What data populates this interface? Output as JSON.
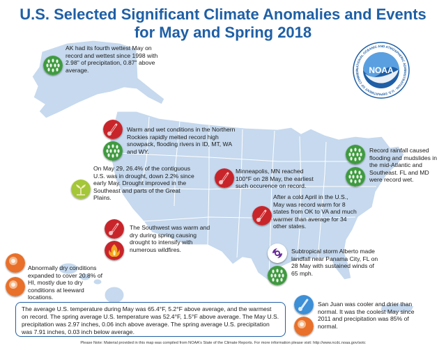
{
  "title": {
    "line1": "U.S. Selected Significant Climate Anomalies and Events",
    "line2": "for May and Spring 2018"
  },
  "logo": {
    "text": "NOAA",
    "ring_text": "NATIONAL OCEANIC AND ATMOSPHERIC ADMINISTRATION · U.S. DEPARTMENT OF COMMERCE"
  },
  "annotations": {
    "alaska": "AK had its fourth wettest May on record and wettest since 1998 with 2.98\" of precipitation, 0.87\" above average.",
    "rockies": "Warm and wet conditions in the Northern Rockies rapidly melted record high snowpack, flooding rivers in ID, MT, WA and WY.",
    "drought": "On May 29, 26.4% of the contiguous U.S. was in drought, down 2.2% since early May. Drought improved in the Southeast and parts of the Great Plains.",
    "minneapolis": "Minneapolis, MN reached 100°F on 28 May, the earliest such occurence on record.",
    "midatlantic": "Record rainfall caused flooding and mudslides in the mid-Atlantic and Southeast. FL and MD were record wet.",
    "april": "After a cold April in the U.S., May was record warm for 8 states from OK to VA and much warmer than average for 34 other states.",
    "southwest": "The Southwest was warm and dry during spring causing drought to intensify with numerous wildfires.",
    "alberto": "Subtropical storm Alberto made landfall near Panama City, FL on 28 May with sustained winds of 65 mph.",
    "hawaii": "Abnormally dry conditions expanded to cover 20.8% of HI, mostly due to dry conditions at leeward locations."
  },
  "summary_box": "The average U.S. temperature during May was 65.4°F, 5.2°F above average, and the warmest on record. The spring average U.S. temperature was 52.4°F, 1.5°F above average. The May U.S. precipitation was 2.97 inches, 0.06 inch above average. The spring average U.S. precipitation was 7.91 inches, 0.03 inch below average.",
  "pr_box": "San Juan was cooler and drier than normal. It was the coolest May since 2011 and  precipitation was 85% of normal.",
  "footer": "Please Note: Material provided in this map was compiled from NOAA's State of the Climate Reports. For more information please visit: http://www.ncdc.noaa.gov/sotc",
  "icons": {
    "rain": "rain-drops",
    "heat": "thermometer-hot",
    "cool": "thermometer-cool",
    "drought": "drought-plant",
    "fire": "wildfire-flame",
    "storm": "tropical-storm",
    "dry": "dry-sun"
  },
  "colors": {
    "title": "#1f5fa5",
    "land": "#c6d9ee",
    "state_border": "#ffffff",
    "rain_icon": "#3f9a3f",
    "heat_icon": "#c8252b",
    "dry_icon": "#e8702a",
    "drought_icon": "#a4c639",
    "storm_icon": "#6a2a9a",
    "cool_icon": "#3d8fd6"
  }
}
